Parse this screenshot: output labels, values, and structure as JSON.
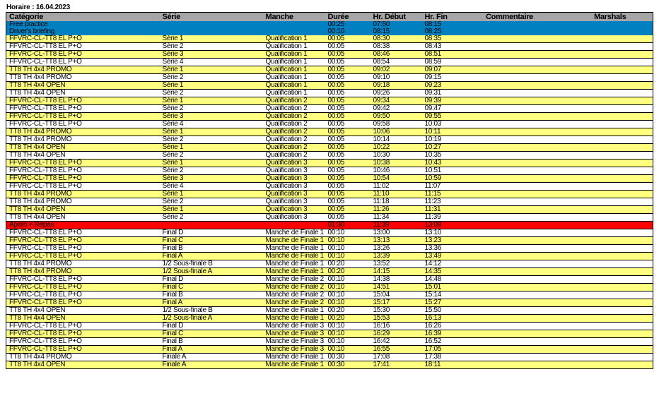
{
  "title": "Horaire : 16.04.2023",
  "colors": {
    "header": "#a6a6a6",
    "blue": "#0080c0",
    "yellow": "#ffff80",
    "white": "#ffffff",
    "red": "#ff0000"
  },
  "columns": [
    "Catégorie",
    "Série",
    "Manche",
    "Durée",
    "Hr. Début",
    "Hr. Fin",
    "Commentaire",
    "Marshals"
  ],
  "rows": [
    {
      "style": "blue",
      "cells": [
        "Free practice",
        "",
        "",
        "00:25",
        "07:50",
        "08:15",
        "",
        ""
      ]
    },
    {
      "style": "blue",
      "cells": [
        "Driver's briefing",
        "",
        "",
        "00:10",
        "08:15",
        "08:25",
        "",
        ""
      ]
    },
    {
      "style": "yellow",
      "cells": [
        "FFVRC-CL-TT8 EL P+O",
        "Série 1",
        "Qualification 1",
        "00:05",
        "08:30",
        "08:35",
        "",
        ""
      ]
    },
    {
      "style": "white",
      "cells": [
        "FFVRC-CL-TT8 EL P+O",
        "Série 2",
        "Qualification 1",
        "00:05",
        "08:38",
        "08:43",
        "",
        ""
      ]
    },
    {
      "style": "yellow",
      "cells": [
        "FFVRC-CL-TT8 EL P+O",
        "Série 3",
        "Qualification 1",
        "00:05",
        "08:46",
        "08:51",
        "",
        ""
      ]
    },
    {
      "style": "white",
      "cells": [
        "FFVRC-CL-TT8 EL P+O",
        "Série 4",
        "Qualification 1",
        "00:05",
        "08:54",
        "08:59",
        "",
        ""
      ]
    },
    {
      "style": "yellow",
      "cells": [
        "TT8 TH 4x4 PROMO",
        "Série 1",
        "Qualification 1",
        "00:05",
        "09:02",
        "09:07",
        "",
        ""
      ]
    },
    {
      "style": "white",
      "cells": [
        "TT8 TH 4x4 PROMO",
        "Série 2",
        "Qualification 1",
        "00:05",
        "09:10",
        "09:15",
        "",
        ""
      ]
    },
    {
      "style": "yellow",
      "cells": [
        "TT8 TH 4x4 OPEN",
        "Série 1",
        "Qualification 1",
        "00:05",
        "09:18",
        "09:23",
        "",
        ""
      ]
    },
    {
      "style": "white",
      "cells": [
        "TT8 TH 4x4 OPEN",
        "Série 2",
        "Qualification 1",
        "00:05",
        "09:26",
        "09:31",
        "",
        ""
      ]
    },
    {
      "style": "yellow",
      "cells": [
        "FFVRC-CL-TT8 EL P+O",
        "Série 1",
        "Qualification 2",
        "00:05",
        "09:34",
        "09:39",
        "",
        ""
      ]
    },
    {
      "style": "white",
      "cells": [
        "FFVRC-CL-TT8 EL P+O",
        "Série 2",
        "Qualification 2",
        "00:05",
        "09:42",
        "09:47",
        "",
        ""
      ]
    },
    {
      "style": "yellow",
      "cells": [
        "FFVRC-CL-TT8 EL P+O",
        "Série 3",
        "Qualification 2",
        "00:05",
        "09:50",
        "09:55",
        "",
        ""
      ]
    },
    {
      "style": "white",
      "cells": [
        "FFVRC-CL-TT8 EL P+O",
        "Série 4",
        "Qualification 2",
        "00:05",
        "09:58",
        "10:03",
        "",
        ""
      ]
    },
    {
      "style": "yellow",
      "cells": [
        "TT8 TH 4x4 PROMO",
        "Série 1",
        "Qualification 2",
        "00:05",
        "10:06",
        "10:11",
        "",
        ""
      ]
    },
    {
      "style": "white",
      "cells": [
        "TT8 TH 4x4 PROMO",
        "Série 2",
        "Qualification 2",
        "00:05",
        "10:14",
        "10:19",
        "",
        ""
      ]
    },
    {
      "style": "yellow",
      "cells": [
        "TT8 TH 4x4 OPEN",
        "Série 1",
        "Qualification 2",
        "00:05",
        "10:22",
        "10:27",
        "",
        ""
      ]
    },
    {
      "style": "white",
      "cells": [
        "TT8 TH 4x4 OPEN",
        "Série 2",
        "Qualification 2",
        "00:05",
        "10:30",
        "10:35",
        "",
        ""
      ]
    },
    {
      "style": "yellow",
      "cells": [
        "FFVRC-CL-TT8 EL P+O",
        "Série 1",
        "Qualification 3",
        "00:05",
        "10:38",
        "10:43",
        "",
        ""
      ]
    },
    {
      "style": "white",
      "cells": [
        "FFVRC-CL-TT8 EL P+O",
        "Série 2",
        "Qualification 3",
        "00:05",
        "10:46",
        "10:51",
        "",
        ""
      ]
    },
    {
      "style": "yellow",
      "cells": [
        "FFVRC-CL-TT8 EL P+O",
        "Série 3",
        "Qualification 3",
        "00:05",
        "10:54",
        "10:59",
        "",
        ""
      ]
    },
    {
      "style": "white",
      "cells": [
        "FFVRC-CL-TT8 EL P+O",
        "Série 4",
        "Qualification 3",
        "00:05",
        "11:02",
        "11:07",
        "",
        ""
      ]
    },
    {
      "style": "yellow",
      "cells": [
        "TT8 TH 4x4 PROMO",
        "Série 1",
        "Qualification 3",
        "00:05",
        "11:10",
        "11:15",
        "",
        ""
      ]
    },
    {
      "style": "white",
      "cells": [
        "TT8 TH 4x4 PROMO",
        "Série 2",
        "Qualification 3",
        "00:05",
        "11:18",
        "11:23",
        "",
        ""
      ]
    },
    {
      "style": "yellow",
      "cells": [
        "TT8 TH 4x4 OPEN",
        "Série 1",
        "Qualification 3",
        "00:05",
        "11:26",
        "11:31",
        "",
        ""
      ]
    },
    {
      "style": "white",
      "cells": [
        "TT8 TH 4x4 OPEN",
        "Série 2",
        "Qualification 3",
        "00:05",
        "11:34",
        "11:39",
        "",
        ""
      ]
    },
    {
      "style": "red",
      "cells": [
        "Apero + Repas",
        "",
        "",
        "01:30",
        "11:39",
        "13:09",
        "",
        ""
      ]
    },
    {
      "style": "white",
      "cells": [
        "FFVRC-CL-TT8 EL P+O",
        "Final D",
        "Manche de Finale 1",
        "00:10",
        "13:00",
        "13:10",
        "",
        ""
      ]
    },
    {
      "style": "yellow",
      "cells": [
        "FFVRC-CL-TT8 EL P+O",
        "Final C",
        "Manche de Finale 1",
        "00:10",
        "13:13",
        "13:23",
        "",
        ""
      ]
    },
    {
      "style": "white",
      "cells": [
        "FFVRC-CL-TT8 EL P+O",
        "Final B",
        "Manche de Finale 1",
        "00:10",
        "13:26",
        "13:36",
        "",
        ""
      ]
    },
    {
      "style": "yellow",
      "cells": [
        "FFVRC-CL-TT8 EL P+O",
        "Final A",
        "Manche de Finale 1",
        "00:10",
        "13:39",
        "13:49",
        "",
        ""
      ]
    },
    {
      "style": "white",
      "cells": [
        "TT8 TH 4x4 PROMO",
        "1/2 Sous-finale B",
        "Manche de Finale 1",
        "00:20",
        "13:52",
        "14:12",
        "",
        ""
      ]
    },
    {
      "style": "yellow",
      "cells": [
        "TT8 TH 4x4 PROMO",
        "1/2 Sous-finale A",
        "Manche de Finale 1",
        "00:20",
        "14:15",
        "14:35",
        "",
        ""
      ]
    },
    {
      "style": "white",
      "cells": [
        "FFVRC-CL-TT8 EL P+O",
        "Final D",
        "Manche de Finale 2",
        "00:10",
        "14:38",
        "14:48",
        "",
        ""
      ]
    },
    {
      "style": "yellow",
      "cells": [
        "FFVRC-CL-TT8 EL P+O",
        "Final C",
        "Manche de Finale 2",
        "00:10",
        "14:51",
        "15:01",
        "",
        ""
      ]
    },
    {
      "style": "white",
      "cells": [
        "FFVRC-CL-TT8 EL P+O",
        "Final B",
        "Manche de Finale 2",
        "00:10",
        "15:04",
        "15:14",
        "",
        ""
      ]
    },
    {
      "style": "yellow",
      "cells": [
        "FFVRC-CL-TT8 EL P+O",
        "Final A",
        "Manche de Finale 2",
        "00:10",
        "15:17",
        "15:27",
        "",
        ""
      ]
    },
    {
      "style": "white",
      "cells": [
        "TT8 TH 4x4 OPEN",
        "1/2 Sous-finale B",
        "Manche de Finale 1",
        "00:20",
        "15:30",
        "15:50",
        "",
        ""
      ]
    },
    {
      "style": "yellow",
      "cells": [
        "TT8 TH 4x4 OPEN",
        "1/2 Sous-finale A",
        "Manche de Finale 1",
        "00:20",
        "15:53",
        "16:13",
        "",
        ""
      ]
    },
    {
      "style": "white",
      "cells": [
        "FFVRC-CL-TT8 EL P+O",
        "Final D",
        "Manche de Finale 3",
        "00:10",
        "16:16",
        "16:26",
        "",
        ""
      ]
    },
    {
      "style": "yellow",
      "cells": [
        "FFVRC-CL-TT8 EL P+O",
        "Final C",
        "Manche de Finale 3",
        "00:10",
        "16:29",
        "16:39",
        "",
        ""
      ]
    },
    {
      "style": "white",
      "cells": [
        "FFVRC-CL-TT8 EL P+O",
        "Final B",
        "Manche de Finale 3",
        "00:10",
        "16:42",
        "16:52",
        "",
        ""
      ]
    },
    {
      "style": "yellow",
      "cells": [
        "FFVRC-CL-TT8 EL P+O",
        "Final A",
        "Manche de Finale 3",
        "00:10",
        "16:55",
        "17:05",
        "",
        ""
      ]
    },
    {
      "style": "white",
      "cells": [
        "TT8 TH 4x4 PROMO",
        "Finale A",
        "Manche de Finale 1",
        "00:30",
        "17:08",
        "17:38",
        "",
        ""
      ]
    },
    {
      "style": "yellow",
      "cells": [
        "TT8 TH 4x4 OPEN",
        "Finale A",
        "Manche de Finale 1",
        "00:30",
        "17:41",
        "18:11",
        "",
        ""
      ]
    }
  ]
}
